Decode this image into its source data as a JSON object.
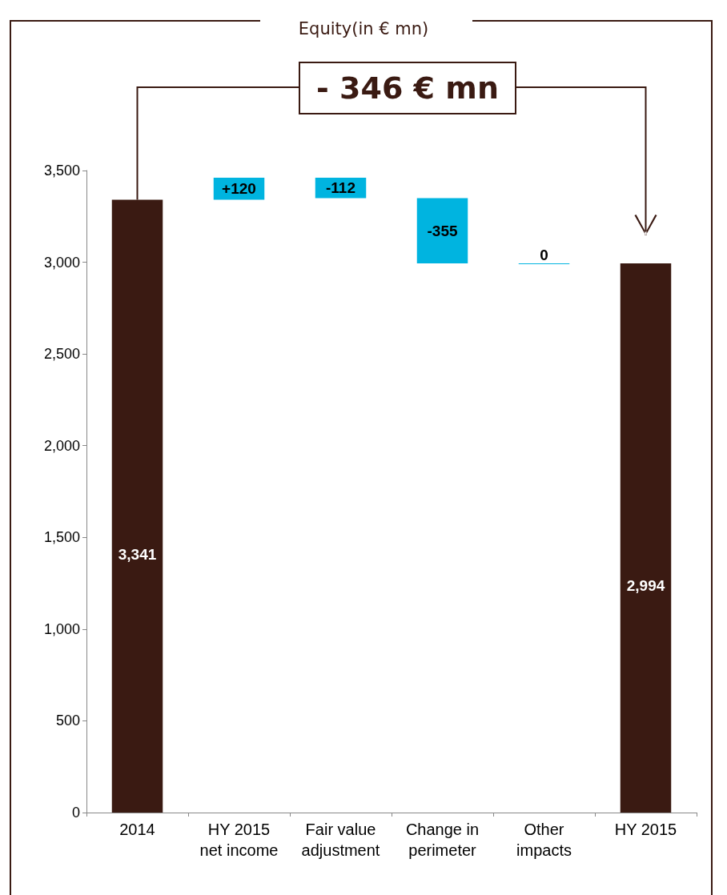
{
  "chart_data": {
    "type": "bar",
    "title": "Equity(in € mn)",
    "categories": [
      "2014",
      "HY 2015\nnet income",
      "Fair value\nadjustment",
      "Change in\nperimeter",
      "Other\nimpacts",
      "HY 2015"
    ],
    "values": [
      3341,
      120,
      -112,
      -355,
      0,
      2994
    ],
    "base": [
      null,
      3341,
      3461,
      3349,
      2994,
      null
    ],
    "colors": [
      "#3a1a12",
      "#00b4e0",
      "#00b4e0",
      "#00b4e0",
      "#00b4e0",
      "#3a1a12"
    ],
    "value_labels": [
      "3,341",
      "+120",
      "-112",
      "-355",
      "0",
      "2,994"
    ],
    "annotations": [
      "- 346 € mn"
    ],
    "ylim": [
      0,
      3500
    ],
    "yticks": [
      0,
      500,
      {
        "value": 1000,
        "label": "1,000"
      },
      {
        "value": 1500,
        "label": "1,500"
      },
      {
        "value": 2000,
        "label": "2,000"
      },
      {
        "value": 2500,
        "label": "2,500"
      },
      {
        "value": 3000,
        "label": "3,000"
      },
      {
        "value": 3500,
        "label": "3,500"
      }
    ],
    "grid": false
  }
}
